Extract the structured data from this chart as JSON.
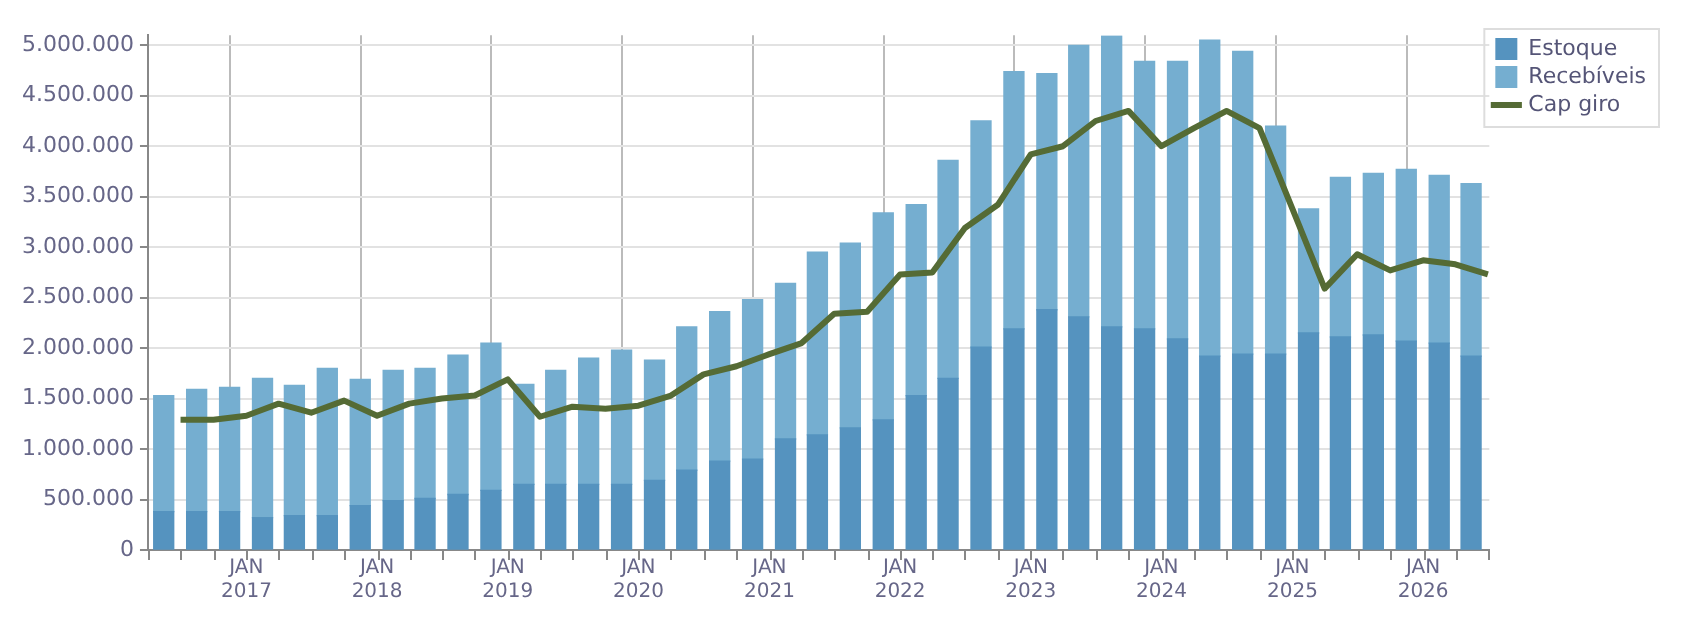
{
  "chart_data": {
    "type": "bar",
    "stacked": true,
    "legend": "top right",
    "grid": true,
    "marker": "none",
    "x": [
      "2016-05-15",
      "2016-08-15",
      "2016-11-15",
      "2017-02-15",
      "2017-05-15",
      "2017-08-15",
      "2017-11-15",
      "2018-02-15",
      "2018-05-15",
      "2018-08-15",
      "2018-11-15",
      "2019-02-15",
      "2019-05-15",
      "2019-08-15",
      "2019-11-15",
      "2020-02-15",
      "2020-05-15",
      "2020-08-15",
      "2020-11-15",
      "2021-02-15",
      "2021-05-15",
      "2021-08-15",
      "2021-11-15",
      "2022-02-15",
      "2022-05-15",
      "2022-08-15",
      "2022-11-15",
      "2023-02-15",
      "2023-05-15",
      "2023-08-15",
      "2023-11-15",
      "2024-02-15",
      "2024-05-15",
      "2024-08-15",
      "2024-11-15",
      "2025-02-15",
      "2025-05-15",
      "2025-08-15",
      "2025-11-15",
      "2026-02-15",
      "2026-05-15"
    ],
    "series": [
      {
        "name": "Estoque",
        "color": "#5593bf",
        "values": [
          380000,
          380000,
          380000,
          320000,
          340000,
          340000,
          440000,
          490000,
          510000,
          550000,
          590000,
          650000,
          650000,
          650000,
          650000,
          690000,
          790000,
          880000,
          900000,
          1100000,
          1140000,
          1210000,
          1290000,
          1530000,
          1700000,
          2010000,
          2190000,
          2380000,
          2310000,
          2210000,
          2190000,
          2090000,
          1920000,
          1940000,
          1940000,
          2150000,
          2110000,
          2130000,
          2070000,
          2050000,
          1920000
        ]
      },
      {
        "name": "Recebíveis",
        "color": "#75aed0",
        "values": [
          1150000,
          1210000,
          1230000,
          1380000,
          1290000,
          1460000,
          1250000,
          1290000,
          1290000,
          1380000,
          1460000,
          990000,
          1130000,
          1250000,
          1330000,
          1190000,
          1420000,
          1480000,
          1580000,
          1540000,
          1810000,
          1830000,
          2050000,
          1890000,
          2160000,
          2240000,
          2550000,
          2340000,
          2690000,
          2880000,
          2650000,
          2750000,
          3130000,
          3000000,
          2260000,
          1230000,
          1580000,
          1600000,
          1700000,
          1660000,
          1710000
        ]
      },
      {
        "name": "Cap giro",
        "type": "line",
        "color": "#556b35",
        "x": [
          "2016-07-01",
          "2016-10-01",
          "2017-01-01",
          "2017-04-01",
          "2017-07-01",
          "2017-10-01",
          "2018-01-01",
          "2018-04-01",
          "2018-07-01",
          "2018-10-01",
          "2019-01-01",
          "2019-04-01",
          "2019-07-01",
          "2019-10-01",
          "2020-01-01",
          "2020-04-01",
          "2020-07-01",
          "2020-10-01",
          "2021-01-01",
          "2021-04-01",
          "2021-07-01",
          "2021-10-01",
          "2022-01-01",
          "2022-04-01",
          "2022-07-01",
          "2022-10-01",
          "2023-01-01",
          "2023-04-01",
          "2023-07-01",
          "2023-10-01",
          "2024-01-01",
          "2024-04-01",
          "2024-07-01",
          "2024-10-01",
          "2025-01-01",
          "2025-04-01",
          "2025-07-01",
          "2025-10-01",
          "2026-01-01",
          "2026-04-01",
          "2026-07-01"
        ],
        "values": [
          1290000,
          1290000,
          1330000,
          1450000,
          1360000,
          1480000,
          1330000,
          1450000,
          1500000,
          1530000,
          1690000,
          1320000,
          1420000,
          1400000,
          1430000,
          1530000,
          1740000,
          1820000,
          1940000,
          2050000,
          2340000,
          2360000,
          2730000,
          2750000,
          3190000,
          3420000,
          3920000,
          4000000,
          4250000,
          4350000,
          4000000,
          4180000,
          4350000,
          4180000,
          3380000,
          2590000,
          2930000,
          2770000,
          2870000,
          2830000,
          2730000
        ]
      }
    ],
    "xlim": [
      "2016-04-01",
      "2026-07-05"
    ],
    "xticks": [
      {
        "value": "2016-04-01",
        "label": null
      },
      {
        "value": "2016-07-01",
        "label": null
      },
      {
        "value": "2016-10-01",
        "label": null
      },
      {
        "value": "2017-01-01",
        "label": "JAN\n2017"
      },
      {
        "value": "2017-04-01",
        "label": null
      },
      {
        "value": "2017-07-01",
        "label": null
      },
      {
        "value": "2017-10-01",
        "label": null
      },
      {
        "value": "2018-01-01",
        "label": "JAN\n2018"
      },
      {
        "value": "2018-04-01",
        "label": null
      },
      {
        "value": "2018-07-01",
        "label": null
      },
      {
        "value": "2018-10-01",
        "label": null
      },
      {
        "value": "2019-01-01",
        "label": "JAN\n2019"
      },
      {
        "value": "2019-04-01",
        "label": null
      },
      {
        "value": "2019-07-01",
        "label": null
      },
      {
        "value": "2019-10-01",
        "label": null
      },
      {
        "value": "2020-01-01",
        "label": "JAN\n2020"
      },
      {
        "value": "2020-04-01",
        "label": null
      },
      {
        "value": "2020-07-01",
        "label": null
      },
      {
        "value": "2020-10-01",
        "label": null
      },
      {
        "value": "2021-01-01",
        "label": "JAN\n2021"
      },
      {
        "value": "2021-04-01",
        "label": null
      },
      {
        "value": "2021-07-01",
        "label": null
      },
      {
        "value": "2021-10-01",
        "label": null
      },
      {
        "value": "2022-01-01",
        "label": "JAN\n2022"
      },
      {
        "value": "2022-04-01",
        "label": null
      },
      {
        "value": "2022-07-01",
        "label": null
      },
      {
        "value": "2022-10-01",
        "label": null
      },
      {
        "value": "2023-01-01",
        "label": "JAN\n2023"
      },
      {
        "value": "2023-04-01",
        "label": null
      },
      {
        "value": "2023-07-01",
        "label": null
      },
      {
        "value": "2023-10-01",
        "label": null
      },
      {
        "value": "2024-01-01",
        "label": "JAN\n2024"
      },
      {
        "value": "2024-04-01",
        "label": null
      },
      {
        "value": "2024-07-01",
        "label": null
      },
      {
        "value": "2024-10-01",
        "label": null
      },
      {
        "value": "2025-01-01",
        "label": "JAN\n2025"
      },
      {
        "value": "2025-04-01",
        "label": null
      },
      {
        "value": "2025-07-01",
        "label": null
      },
      {
        "value": "2025-10-01",
        "label": null
      },
      {
        "value": "2026-01-01",
        "label": "JAN\n2026"
      },
      {
        "value": "2026-04-01",
        "label": null
      },
      {
        "value": "2026-07-01",
        "label": null
      }
    ],
    "ylim": [
      0,
      5100000
    ],
    "yticks": [
      {
        "value": 0,
        "label": "0"
      },
      {
        "value": 500000,
        "label": "500.000"
      },
      {
        "value": 1000000,
        "label": "1.000.000"
      },
      {
        "value": 1500000,
        "label": "1.500.000"
      },
      {
        "value": 2000000,
        "label": "2.000.000"
      },
      {
        "value": 2500000,
        "label": "2.500.000"
      },
      {
        "value": 3000000,
        "label": "3.000.000"
      },
      {
        "value": 3500000,
        "label": "3.500.000"
      },
      {
        "value": 4000000,
        "label": "4.000.000"
      },
      {
        "value": 4500000,
        "label": "4.500.000"
      },
      {
        "value": 5000000,
        "label": "5.000.000"
      }
    ]
  }
}
